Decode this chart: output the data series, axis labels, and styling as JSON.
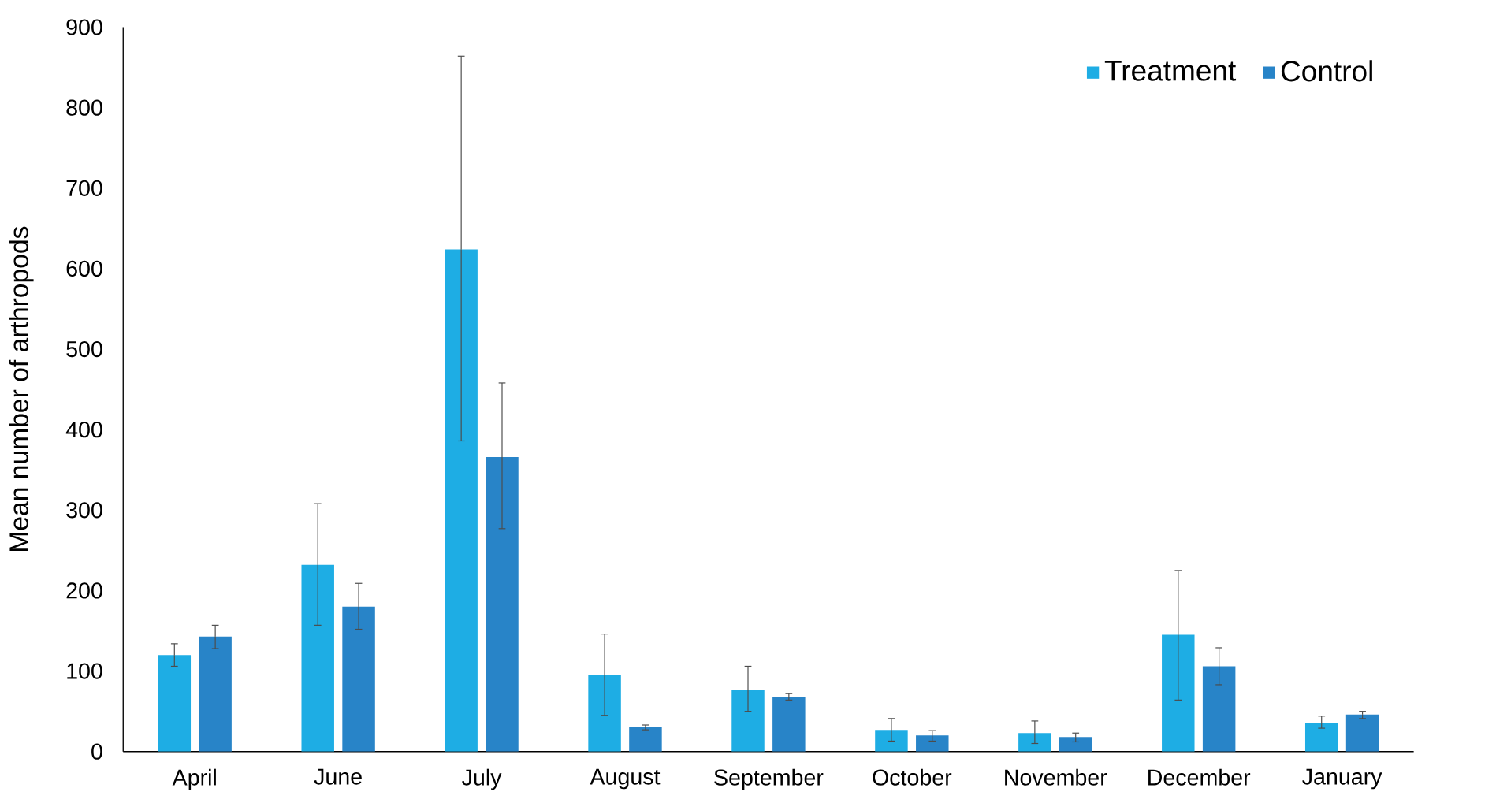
{
  "chart_data": {
    "type": "bar",
    "ylabel": "Mean number of arthropods",
    "categories": [
      "April",
      "June",
      "July",
      "August",
      "September",
      "October",
      "November",
      "December",
      "January"
    ],
    "series": [
      {
        "name": "Treatment",
        "color": "#1eade4",
        "values": [
          120,
          232,
          624,
          95,
          77,
          27,
          23,
          145,
          36
        ],
        "errors": [
          [
            106,
            134
          ],
          [
            157,
            308
          ],
          [
            386,
            864
          ],
          [
            45,
            146
          ],
          [
            50,
            106
          ],
          [
            13,
            41
          ],
          [
            10,
            38
          ],
          [
            64,
            225
          ],
          [
            29,
            44
          ]
        ]
      },
      {
        "name": "Control",
        "color": "#2884c8",
        "values": [
          143,
          180,
          366,
          30,
          68,
          20,
          18,
          106,
          46
        ],
        "errors": [
          [
            128,
            157
          ],
          [
            152,
            209
          ],
          [
            277,
            458
          ],
          [
            27,
            33
          ],
          [
            64,
            72
          ],
          [
            13,
            26
          ],
          [
            12,
            23
          ],
          [
            83,
            129
          ],
          [
            41,
            50
          ]
        ]
      }
    ],
    "ylim": [
      0,
      900
    ],
    "yticks": [
      0,
      100,
      200,
      300,
      400,
      500,
      600,
      700,
      800,
      900
    ],
    "grid": false,
    "legend": "top right"
  }
}
